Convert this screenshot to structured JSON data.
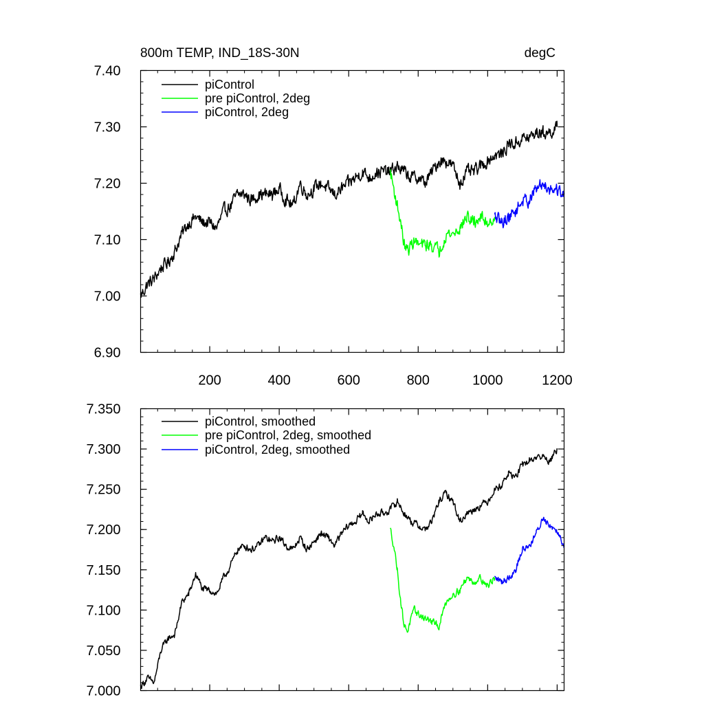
{
  "chart_data": [
    {
      "type": "line",
      "title_left": "800m TEMP, IND_18S-30N",
      "title_right": "degC",
      "xlim": [
        1,
        1220
      ],
      "ylim": [
        6.9,
        7.4
      ],
      "yticks": [
        "6.90",
        "7.00",
        "7.10",
        "7.20",
        "7.30",
        "7.40"
      ],
      "ytick_values": [
        6.9,
        7.0,
        7.1,
        7.2,
        7.3,
        7.4
      ],
      "xticks": [
        "200",
        "400",
        "600",
        "800",
        "1000",
        "1200"
      ],
      "xtick_values": [
        200,
        400,
        600,
        800,
        1000,
        1200
      ],
      "noise": 0.018,
      "series": [
        {
          "name": "piControl",
          "color": "#000000",
          "x": [
            1,
            20,
            40,
            60,
            80,
            100,
            120,
            140,
            160,
            180,
            200,
            220,
            240,
            260,
            280,
            300,
            320,
            340,
            360,
            380,
            400,
            420,
            440,
            460,
            480,
            500,
            520,
            540,
            560,
            580,
            600,
            620,
            640,
            660,
            680,
            700,
            720,
            740,
            760,
            780,
            800,
            820,
            840,
            860,
            880,
            900,
            920,
            940,
            960,
            980,
            1000,
            1020,
            1040,
            1060,
            1080,
            1100,
            1120,
            1140,
            1160,
            1180,
            1200
          ],
          "y": [
            7.0,
            7.02,
            7.03,
            7.05,
            7.06,
            7.08,
            7.11,
            7.13,
            7.14,
            7.13,
            7.13,
            7.12,
            7.15,
            7.16,
            7.18,
            7.18,
            7.17,
            7.18,
            7.18,
            7.18,
            7.19,
            7.17,
            7.16,
            7.2,
            7.18,
            7.19,
            7.2,
            7.19,
            7.18,
            7.19,
            7.2,
            7.21,
            7.22,
            7.21,
            7.22,
            7.22,
            7.22,
            7.23,
            7.22,
            7.21,
            7.21,
            7.2,
            7.22,
            7.24,
            7.24,
            7.23,
            7.2,
            7.22,
            7.22,
            7.23,
            7.24,
            7.25,
            7.25,
            7.27,
            7.27,
            7.28,
            7.28,
            7.29,
            7.29,
            7.29,
            7.3
          ]
        },
        {
          "name": "pre piControl, 2deg",
          "color": "#00ff00",
          "x": [
            720,
            730,
            740,
            750,
            760,
            770,
            780,
            790,
            800,
            820,
            840,
            860,
            880,
            900,
            920,
            940,
            960,
            980,
            1000,
            1020
          ],
          "y": [
            7.22,
            7.19,
            7.16,
            7.13,
            7.09,
            7.08,
            7.09,
            7.1,
            7.09,
            7.09,
            7.09,
            7.08,
            7.11,
            7.11,
            7.12,
            7.14,
            7.13,
            7.14,
            7.13,
            7.14
          ]
        },
        {
          "name": "piControl, 2deg",
          "color": "#0000ff",
          "x": [
            1020,
            1040,
            1060,
            1080,
            1100,
            1120,
            1140,
            1160,
            1180,
            1200,
            1220
          ],
          "y": [
            7.14,
            7.13,
            7.14,
            7.15,
            7.17,
            7.17,
            7.19,
            7.2,
            7.19,
            7.19,
            7.18
          ]
        }
      ]
    },
    {
      "type": "line",
      "xlim": [
        1,
        1220
      ],
      "ylim": [
        7.0,
        7.35
      ],
      "yticks": [
        "7.000",
        "7.050",
        "7.100",
        "7.150",
        "7.200",
        "7.250",
        "7.300",
        "7.350"
      ],
      "ytick_values": [
        7.0,
        7.05,
        7.1,
        7.15,
        7.2,
        7.25,
        7.3,
        7.35
      ],
      "xtick_values": [
        200,
        400,
        600,
        800,
        1000,
        1200
      ],
      "noise": 0.007,
      "series": [
        {
          "name": "piControl, smoothed",
          "color": "#000000",
          "x": [
            1,
            20,
            40,
            60,
            80,
            100,
            120,
            140,
            160,
            180,
            200,
            220,
            240,
            260,
            280,
            300,
            320,
            340,
            360,
            380,
            400,
            420,
            440,
            460,
            480,
            500,
            520,
            540,
            560,
            580,
            600,
            620,
            640,
            660,
            680,
            700,
            720,
            740,
            760,
            780,
            800,
            820,
            840,
            860,
            880,
            900,
            920,
            940,
            960,
            980,
            1000,
            1020,
            1040,
            1060,
            1080,
            1100,
            1120,
            1140,
            1160,
            1180,
            1200
          ],
          "y": [
            7.005,
            7.015,
            7.01,
            7.05,
            7.065,
            7.07,
            7.11,
            7.12,
            7.145,
            7.125,
            7.125,
            7.12,
            7.14,
            7.155,
            7.175,
            7.18,
            7.175,
            7.18,
            7.19,
            7.185,
            7.19,
            7.18,
            7.175,
            7.19,
            7.175,
            7.185,
            7.195,
            7.19,
            7.18,
            7.195,
            7.205,
            7.21,
            7.22,
            7.21,
            7.22,
            7.22,
            7.225,
            7.235,
            7.22,
            7.21,
            7.205,
            7.2,
            7.21,
            7.235,
            7.245,
            7.235,
            7.21,
            7.22,
            7.225,
            7.23,
            7.235,
            7.25,
            7.255,
            7.27,
            7.265,
            7.28,
            7.285,
            7.29,
            7.29,
            7.285,
            7.3
          ]
        },
        {
          "name": "pre piControl, 2deg, smoothed",
          "color": "#00ff00",
          "x": [
            720,
            730,
            740,
            750,
            760,
            770,
            780,
            790,
            800,
            820,
            840,
            860,
            880,
            900,
            920,
            940,
            960,
            980,
            1000,
            1020
          ],
          "y": [
            7.2,
            7.18,
            7.15,
            7.11,
            7.08,
            7.075,
            7.09,
            7.1,
            7.095,
            7.09,
            7.085,
            7.08,
            7.11,
            7.12,
            7.125,
            7.14,
            7.135,
            7.14,
            7.13,
            7.14
          ]
        },
        {
          "name": "piControl, 2deg, smoothed",
          "color": "#0000ff",
          "x": [
            1020,
            1040,
            1060,
            1080,
            1100,
            1120,
            1140,
            1160,
            1180,
            1200,
            1220
          ],
          "y": [
            7.14,
            7.135,
            7.14,
            7.15,
            7.175,
            7.18,
            7.195,
            7.215,
            7.205,
            7.2,
            7.18
          ]
        }
      ]
    }
  ]
}
